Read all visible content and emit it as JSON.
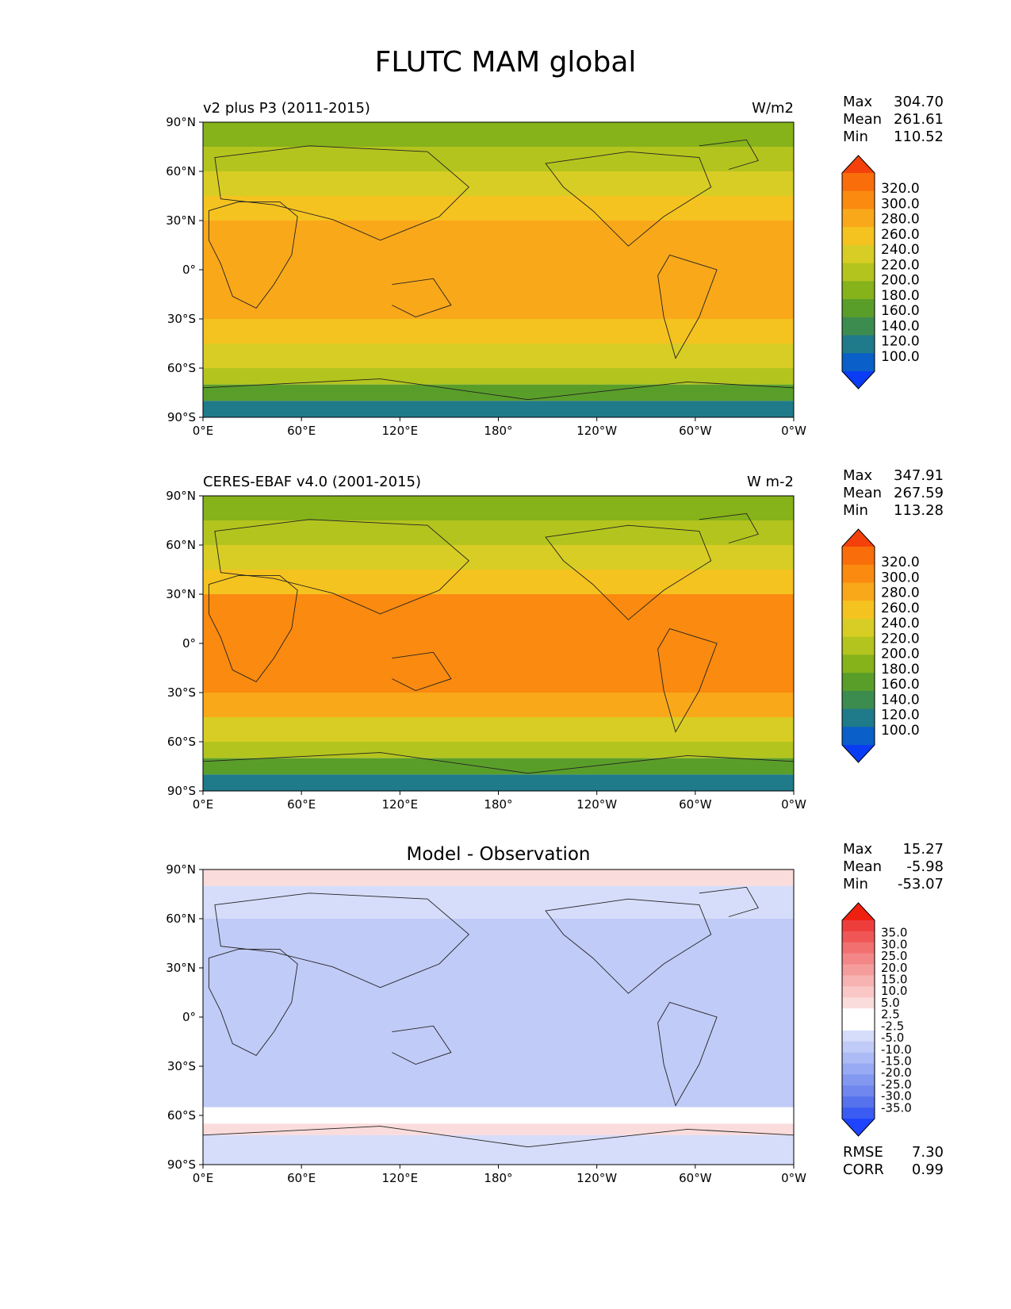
{
  "figure": {
    "title": "FLUTC MAM global"
  },
  "colors": {
    "abs_levels": [
      "#0a3cf5",
      "#0a5fc8",
      "#1f7a8a",
      "#3d8c4f",
      "#5a9e2a",
      "#86b21a",
      "#b4c41e",
      "#d8cd24",
      "#f5c320",
      "#f9a81a",
      "#fa8a10",
      "#f96e0a",
      "#f4400a"
    ],
    "diff_levels": [
      "#1e44ff",
      "#3a5cf2",
      "#5672ec",
      "#6f87ee",
      "#8399f1",
      "#98aaf3",
      "#acbbf5",
      "#c1cbf7",
      "#d6ddfa",
      "#ffffff",
      "#ffffff",
      "#fbdcdc",
      "#fac7c7",
      "#f7b2b2",
      "#f59c9c",
      "#f38787",
      "#f27070",
      "#f05656",
      "#ee3d3d",
      "#f02010"
    ]
  },
  "chart_data": [
    {
      "type": "heatmap",
      "subtitle": "v2 plus P3 (2011-2015)",
      "units": "W/m2",
      "x_ticks": [
        "0°E",
        "60°E",
        "120°E",
        "180°",
        "120°W",
        "60°W",
        "0°W"
      ],
      "y_ticks": [
        "90°N",
        "60°N",
        "30°N",
        "0°",
        "30°S",
        "60°S",
        "90°S"
      ],
      "xlim": [
        0,
        360
      ],
      "ylim": [
        -90,
        90
      ],
      "stats": [
        {
          "label": "Max",
          "value": "304.70"
        },
        {
          "label": "Mean",
          "value": "261.61"
        },
        {
          "label": "Min",
          "value": "110.52"
        }
      ],
      "colorbar_labels": [
        "320.0",
        "300.0",
        "280.0",
        "260.0",
        "240.0",
        "220.0",
        "200.0",
        "180.0",
        "160.0",
        "140.0",
        "120.0",
        "100.0"
      ],
      "approx_field_bands": [
        {
          "lat": [
            75,
            90
          ],
          "value": 185
        },
        {
          "lat": [
            60,
            75
          ],
          "value": 205
        },
        {
          "lat": [
            45,
            60
          ],
          "value": 225
        },
        {
          "lat": [
            30,
            45
          ],
          "value": 250
        },
        {
          "lat": [
            -30,
            30
          ],
          "value": 278
        },
        {
          "lat": [
            -45,
            -30
          ],
          "value": 255
        },
        {
          "lat": [
            -60,
            -45
          ],
          "value": 228
        },
        {
          "lat": [
            -70,
            -60
          ],
          "value": 205
        },
        {
          "lat": [
            -80,
            -70
          ],
          "value": 165
        },
        {
          "lat": [
            -90,
            -80
          ],
          "value": 130
        }
      ]
    },
    {
      "type": "heatmap",
      "subtitle": "CERES-EBAF v4.0 (2001-2015)",
      "units": "W m-2",
      "x_ticks": [
        "0°E",
        "60°E",
        "120°E",
        "180°",
        "120°W",
        "60°W",
        "0°W"
      ],
      "y_ticks": [
        "90°N",
        "60°N",
        "30°N",
        "0°",
        "30°S",
        "60°S",
        "90°S"
      ],
      "xlim": [
        0,
        360
      ],
      "ylim": [
        -90,
        90
      ],
      "stats": [
        {
          "label": "Max",
          "value": "347.91"
        },
        {
          "label": "Mean",
          "value": "267.59"
        },
        {
          "label": "Min",
          "value": "113.28"
        }
      ],
      "colorbar_labels": [
        "320.0",
        "300.0",
        "280.0",
        "260.0",
        "240.0",
        "220.0",
        "200.0",
        "180.0",
        "160.0",
        "140.0",
        "120.0",
        "100.0"
      ],
      "approx_field_bands": [
        {
          "lat": [
            75,
            90
          ],
          "value": 190
        },
        {
          "lat": [
            60,
            75
          ],
          "value": 210
        },
        {
          "lat": [
            45,
            60
          ],
          "value": 232
        },
        {
          "lat": [
            30,
            45
          ],
          "value": 258
        },
        {
          "lat": [
            -30,
            30
          ],
          "value": 285
        },
        {
          "lat": [
            -45,
            -30
          ],
          "value": 262
        },
        {
          "lat": [
            -60,
            -45
          ],
          "value": 235
        },
        {
          "lat": [
            -70,
            -60
          ],
          "value": 210
        },
        {
          "lat": [
            -80,
            -70
          ],
          "value": 170
        },
        {
          "lat": [
            -90,
            -80
          ],
          "value": 132
        }
      ]
    },
    {
      "type": "heatmap",
      "title": "Model - Observation",
      "x_ticks": [
        "0°E",
        "60°E",
        "120°E",
        "180°",
        "120°W",
        "60°W",
        "0°W"
      ],
      "y_ticks": [
        "90°N",
        "60°N",
        "30°N",
        "0°",
        "30°S",
        "60°S",
        "90°S"
      ],
      "xlim": [
        0,
        360
      ],
      "ylim": [
        -90,
        90
      ],
      "stats": [
        {
          "label": "Max",
          "value": "15.27"
        },
        {
          "label": "Mean",
          "value": "-5.98"
        },
        {
          "label": "Min",
          "value": "-53.07"
        }
      ],
      "colorbar_labels": [
        "35.0",
        "30.0",
        "25.0",
        "20.0",
        "15.0",
        "10.0",
        "5.0",
        "2.5",
        "-2.5",
        "-5.0",
        "-10.0",
        "-15.0",
        "-20.0",
        "-25.0",
        "-30.0",
        "-35.0"
      ],
      "metrics": [
        {
          "label": "RMSE",
          "value": "7.30"
        },
        {
          "label": "CORR",
          "value": "0.99"
        }
      ],
      "approx_field_bands": [
        {
          "lat": [
            80,
            90
          ],
          "value": 3
        },
        {
          "lat": [
            60,
            80
          ],
          "value": -3
        },
        {
          "lat": [
            15,
            60
          ],
          "value": -8
        },
        {
          "lat": [
            -15,
            15
          ],
          "value": -7
        },
        {
          "lat": [
            -55,
            -15
          ],
          "value": -6
        },
        {
          "lat": [
            -65,
            -55
          ],
          "value": -1
        },
        {
          "lat": [
            -72,
            -65
          ],
          "value": 3
        },
        {
          "lat": [
            -90,
            -72
          ],
          "value": -5
        }
      ]
    }
  ]
}
